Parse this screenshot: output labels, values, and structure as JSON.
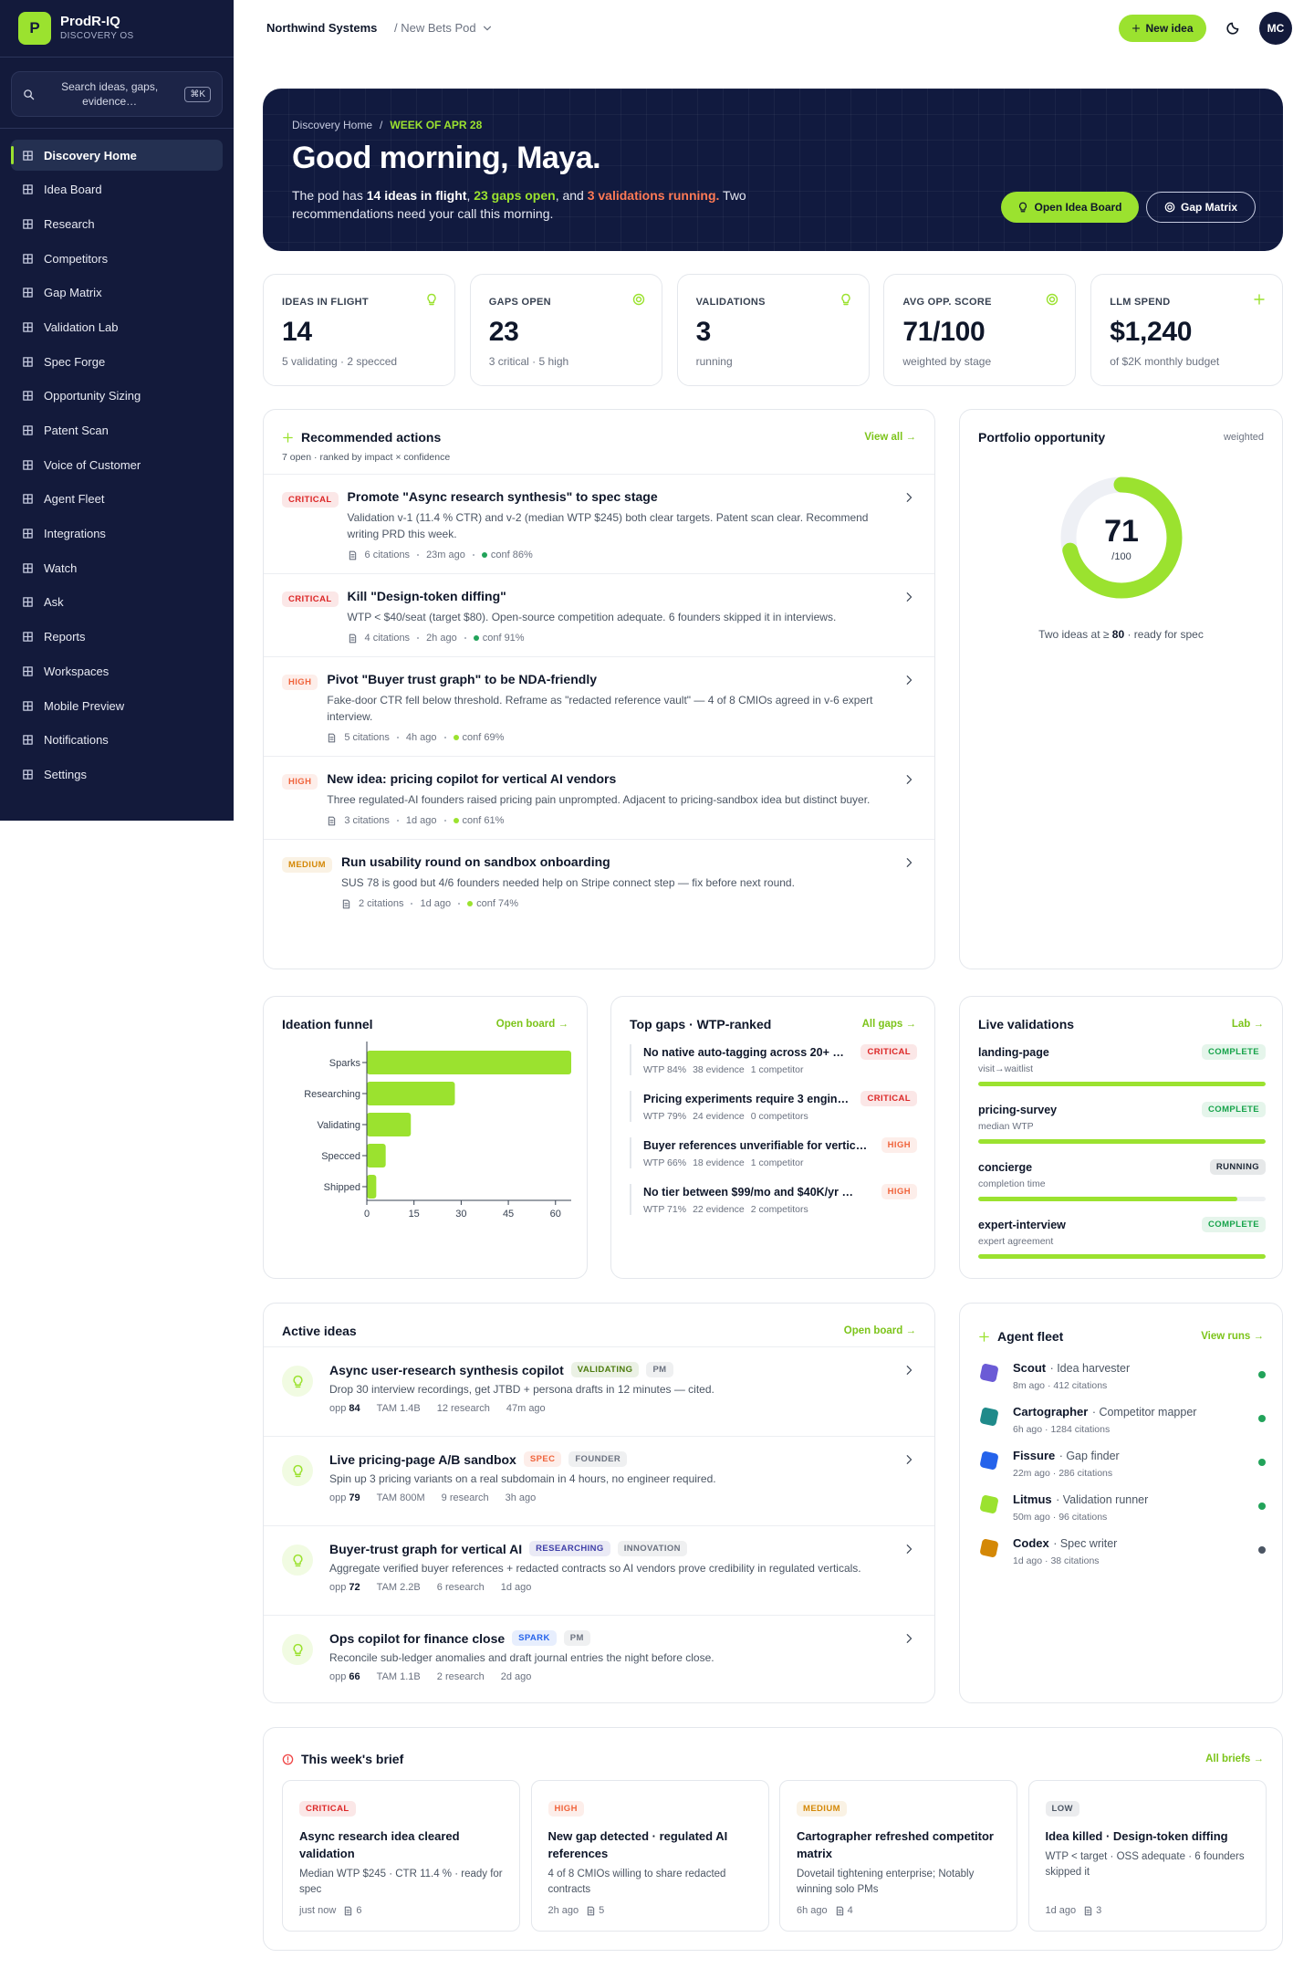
{
  "sidebar": {
    "logo": "P",
    "brand": "ProdR-IQ",
    "tagline": "DISCOVERY OS",
    "search": "Search ideas, gaps, evidence…",
    "shortcut": "⌘K",
    "nav": [
      "Discovery Home",
      "Idea Board",
      "Research",
      "Competitors",
      "Gap Matrix",
      "Validation Lab",
      "Spec Forge",
      "Opportunity Sizing",
      "Patent Scan",
      "Voice of Customer",
      "Agent Fleet",
      "Integrations",
      "Watch",
      "Ask",
      "Reports",
      "Workspaces",
      "Mobile Preview",
      "Notifications",
      "Settings"
    ]
  },
  "topbar": {
    "org": "Northwind Systems",
    "pod": "/ New Bets Pod",
    "new_idea": "New idea",
    "avatar": "MC"
  },
  "hero": {
    "crumb": "Discovery Home",
    "sep": "/",
    "week": "WEEK OF APR 28",
    "greeting": "Good morning, Maya.",
    "text": [
      "The pod has ",
      "14 ideas in flight",
      ", ",
      "23 gaps open",
      ", and ",
      "3 validations running.",
      " Two recommendations need your call this morning."
    ],
    "buttons": [
      "Open Idea Board",
      "Gap Matrix"
    ]
  },
  "kpis": [
    {
      "label": "IDEAS IN FLIGHT",
      "value": 14,
      "note": "5 validating · 2 specced"
    },
    {
      "label": "GAPS OPEN",
      "value": 23,
      "note": "3 critical · 5 high"
    },
    {
      "label": "VALIDATIONS",
      "value": 3,
      "note": "running"
    },
    {
      "label": "AVG OPP. SCORE",
      "value": "71/100",
      "note": "weighted by stage"
    },
    {
      "label": "LLM SPEND",
      "value": "$1,240",
      "note": "of $2K monthly budget"
    }
  ],
  "actions": {
    "title": "Recommended actions",
    "subtitle": "7 open · ranked by impact × confidence",
    "link": "View all →",
    "items": [
      {
        "tag": {
          "label": "CRITICAL",
          "color": "#dc2626"
        },
        "title": "Promote \"Async research synthesis\" to spec stage",
        "text": "Validation v-1 (11.4 % CTR) and v-2 (median WTP $245) both clear targets. Patent scan clear. Recommend writing PRD this week.",
        "citations": "6 citations",
        "time": "23m ago",
        "conf": "conf 86%",
        "conf_color": "#22a35a"
      },
      {
        "tag": {
          "label": "CRITICAL",
          "color": "#dc2626"
        },
        "title": "Kill \"Design-token diffing\"",
        "text": "WTP < $40/seat (target $80). Open-source competition adequate. 6 founders skipped it in interviews.",
        "citations": "4 citations",
        "time": "2h ago",
        "conf": "conf 91%",
        "conf_color": "#22a35a"
      },
      {
        "tag": {
          "label": "HIGH",
          "color": "#f0643c"
        },
        "title": "Pivot \"Buyer trust graph\" to be NDA-friendly",
        "text": "Fake-door CTR fell below threshold. Reframe as \"redacted reference vault\" — 4 of 8 CMIOs agreed in v-6 expert interview.",
        "citations": "5 citations",
        "time": "4h ago",
        "conf": "conf 69%",
        "conf_color": "#9be22f"
      },
      {
        "tag": {
          "label": "HIGH",
          "color": "#f0643c"
        },
        "title": "New idea: pricing copilot for vertical AI vendors",
        "text": "Three regulated-AI founders raised pricing pain unprompted. Adjacent to pricing-sandbox idea but distinct buyer.",
        "citations": "3 citations",
        "time": "1d ago",
        "conf": "conf 61%",
        "conf_color": "#9be22f"
      },
      {
        "tag": {
          "label": "MEDIUM",
          "color": "#d48806"
        },
        "title": "Run usability round on sandbox onboarding",
        "text": "SUS 78 is good but 4/6 founders needed help on Stripe connect step — fix before next round.",
        "citations": "2 citations",
        "time": "1d ago",
        "conf": "conf 74%",
        "conf_color": "#9be22f"
      }
    ]
  },
  "portfolio": {
    "title": "Portfolio opportunity",
    "note": "weighted",
    "score": 71,
    "scale": {
      "value": 100,
      "label": "/100"
    },
    "color": "#9be22f",
    "caption": [
      "Two ideas at ≥ ",
      "80",
      " · ready for spec"
    ]
  },
  "chart_data": {
    "type": "bar",
    "orientation": "horizontal",
    "title": "Ideation funnel",
    "link": "Open board →",
    "categories": [
      "Sparks",
      "Researching",
      "Validating",
      "Specced",
      "Shipped"
    ],
    "values": [
      65,
      28,
      14,
      6,
      3
    ],
    "color": "#9be22f",
    "xlim": [
      0,
      65
    ],
    "xticks": [
      0,
      15,
      30,
      45,
      60
    ]
  },
  "gaps": {
    "title": "Top gaps · WTP-ranked",
    "link": "All gaps →",
    "items": [
      {
        "title": "No native auto-tagging across 20+ …",
        "tag": {
          "label": "CRITICAL",
          "color": "#dc2626"
        },
        "wtp": "WTP 84%",
        "evidence": "38 evidence",
        "competitors": "1 competitor"
      },
      {
        "title": "Pricing experiments require 3 engin…",
        "tag": {
          "label": "CRITICAL",
          "color": "#dc2626"
        },
        "wtp": "WTP 79%",
        "evidence": "24 evidence",
        "competitors": "0 competitors"
      },
      {
        "title": "Buyer references unverifiable for vertic…",
        "tag": {
          "label": "HIGH",
          "color": "#f0643c"
        },
        "wtp": "WTP 66%",
        "evidence": "18 evidence",
        "competitors": "1 competitor"
      },
      {
        "title": "No tier between $99/mo and $40K/yr …",
        "tag": {
          "label": "HIGH",
          "color": "#f0643c"
        },
        "wtp": "WTP 71%",
        "evidence": "22 evidence",
        "competitors": "2 competitors"
      }
    ]
  },
  "validations": {
    "title": "Live validations",
    "link": "Lab →",
    "range": [
      0,
      100
    ],
    "color": "#9be22f",
    "items": [
      {
        "name": "landing-page",
        "status": {
          "label": "COMPLETE",
          "color": "#16a34a"
        },
        "metric": "visit→waitlist",
        "progress": 100
      },
      {
        "name": "pricing-survey",
        "status": {
          "label": "COMPLETE",
          "color": "#16a34a"
        },
        "metric": "median WTP",
        "progress": 100
      },
      {
        "name": "concierge",
        "status": {
          "label": "RUNNING",
          "color": "#1f2937"
        },
        "metric": "completion time",
        "progress": 90
      },
      {
        "name": "expert-interview",
        "status": {
          "label": "COMPLETE",
          "color": "#16a34a"
        },
        "metric": "expert agreement",
        "progress": 100
      }
    ]
  },
  "active_ideas": {
    "title": "Active ideas",
    "link": "Open board →",
    "items": [
      {
        "title": "Async user-research synthesis copilot",
        "tags": [
          {
            "label": "VALIDATING",
            "color": "#4d7c0f"
          },
          {
            "label": "PM",
            "color": "#6b7280"
          }
        ],
        "text": "Drop 30 interview recordings, get JTBD + persona drafts in 12 minutes — cited.",
        "opp_label": "opp",
        "opp": 84,
        "tam": "TAM 1.4B",
        "research": "12 research",
        "time": "47m ago"
      },
      {
        "title": "Live pricing-page A/B sandbox",
        "tags": [
          {
            "label": "SPEC",
            "color": "#f0643c"
          },
          {
            "label": "FOUNDER",
            "color": "#6b7280"
          }
        ],
        "text": "Spin up 3 pricing variants on a real subdomain in 4 hours, no engineer required.",
        "opp_label": "opp",
        "opp": 79,
        "tam": "TAM 800M",
        "research": "9 research",
        "time": "3h ago"
      },
      {
        "title": "Buyer-trust graph for vertical AI",
        "tags": [
          {
            "label": "RESEARCHING",
            "color": "#3f3fa8"
          },
          {
            "label": "INNOVATION",
            "color": "#6b7280"
          }
        ],
        "text": "Aggregate verified buyer references + redacted contracts so AI vendors prove credibility in regulated verticals.",
        "opp_label": "opp",
        "opp": 72,
        "tam": "TAM 2.2B",
        "research": "6 research",
        "time": "1d ago"
      },
      {
        "title": "Ops copilot for finance close",
        "tags": [
          {
            "label": "SPARK",
            "color": "#2563eb"
          },
          {
            "label": "PM",
            "color": "#6b7280"
          }
        ],
        "text": "Reconcile sub-ledger anomalies and draft journal entries the night before close.",
        "opp_label": "opp",
        "opp": 66,
        "tam": "TAM 1.1B",
        "research": "2 research",
        "time": "2d ago"
      }
    ]
  },
  "agents": {
    "title": "Agent fleet",
    "link": "View runs →",
    "items": [
      {
        "name": "Scout",
        "role": "· Idea harvester",
        "meta": "8m ago · 412 citations",
        "status_color": "#22a35a"
      },
      {
        "name": "Cartographer",
        "role": "· Competitor mapper",
        "meta": "6h ago · 1284 citations",
        "status_color": "#22a35a"
      },
      {
        "name": "Fissure",
        "role": "· Gap finder",
        "meta": "22m ago · 286 citations",
        "status_color": "#22a35a"
      },
      {
        "name": "Litmus",
        "role": "· Validation runner",
        "meta": "50m ago · 96 citations",
        "status_color": "#22a35a"
      },
      {
        "name": "Codex",
        "role": "· Spec writer",
        "meta": "1d ago · 38 citations",
        "status_color": "#4b5563"
      }
    ]
  },
  "brief": {
    "title": "This week's brief",
    "link": "All briefs →",
    "items": [
      {
        "tag": {
          "label": "CRITICAL",
          "color": "#dc2626"
        },
        "title": "Async research idea cleared validation",
        "text": "Median WTP $245 · CTR 11.4 % · ready for spec",
        "time": "just now",
        "count": 6
      },
      {
        "tag": {
          "label": "HIGH",
          "color": "#f0643c"
        },
        "title": "New gap detected · regulated AI references",
        "text": "4 of 8 CMIOs willing to share redacted contracts",
        "time": "2h ago",
        "count": 5
      },
      {
        "tag": {
          "label": "MEDIUM",
          "color": "#d48806"
        },
        "title": "Cartographer refreshed competitor matrix",
        "text": "Dovetail tightening enterprise; Notably winning solo PMs",
        "time": "6h ago",
        "count": 4
      },
      {
        "tag": {
          "label": "LOW",
          "color": "#4b5563"
        },
        "title": "Idea killed · Design-token diffing",
        "text": "WTP < target · OSS adequate · 6 founders skipped it",
        "time": "1d ago",
        "count": 3
      }
    ]
  }
}
